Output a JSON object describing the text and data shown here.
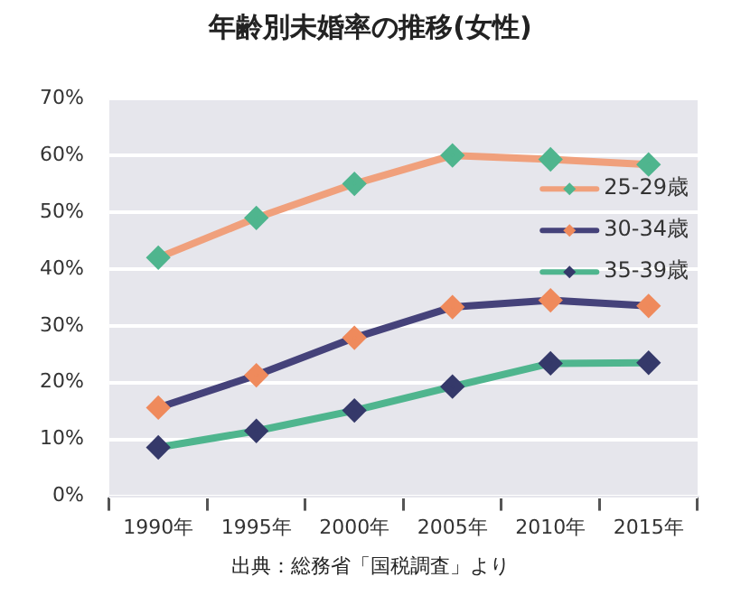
{
  "chart_data": {
    "type": "line",
    "title": "年齢別未婚率の推移(女性)",
    "categories": [
      "1990年",
      "1995年",
      "2000年",
      "2005年",
      "2010年",
      "2015年"
    ],
    "series": [
      {
        "name": "25-29歳",
        "color": "#f0a07c",
        "colors": [
          "#4fb58e",
          "#4fb58e",
          "#4fb58e",
          "#4fb58e",
          "#4fb58e",
          "#4fb58e"
        ],
        "values": [
          42,
          49,
          55,
          60,
          59.3,
          58.4
        ]
      },
      {
        "name": "30-34歳",
        "color": "#45427a",
        "colors": [
          "#ef8a5c",
          "#ef8a5c",
          "#ef8a5c",
          "#ef8a5c",
          "#ef8a5c",
          "#ef8a5c"
        ],
        "values": [
          15.6,
          21.3,
          27.9,
          33.3,
          34.5,
          33.5
        ]
      },
      {
        "name": "35-39歳",
        "color": "#4fb58e",
        "colors": [
          "#35396a",
          "#35396a",
          "#35396a",
          "#35396a",
          "#35396a",
          "#35396a"
        ],
        "values": [
          8.6,
          11.5,
          15.1,
          19.3,
          23.4,
          23.5
        ]
      }
    ],
    "ylim": [
      0,
      70
    ],
    "yticks": [
      {
        "value": 0,
        "label": "0%"
      },
      {
        "value": 10,
        "label": "10%"
      },
      {
        "value": 20,
        "label": "20%"
      },
      {
        "value": 30,
        "label": "30%"
      },
      {
        "value": 40,
        "label": "40%"
      },
      {
        "value": 50,
        "label": "50%"
      },
      {
        "value": 60,
        "label": "60%"
      },
      {
        "value": 70,
        "label": "70%"
      }
    ],
    "grid": "y",
    "legend": "right",
    "marker": "diamond",
    "line_style": "solid",
    "annotations": [
      "出典：総務省「国税調査」より"
    ]
  }
}
